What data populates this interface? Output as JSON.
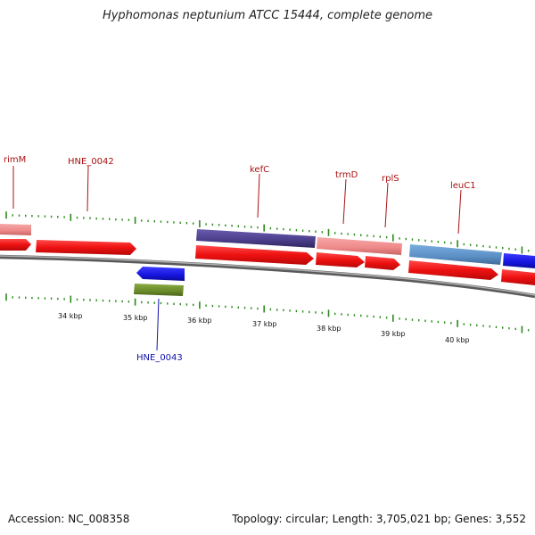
{
  "title": "Hyphomonas neptunium ATCC 15444, complete genome",
  "footer": {
    "accession": "Accession: NC_008358",
    "stats": "Topology: circular; Length: 3,705,021 bp; Genes: 3,552"
  },
  "scale_labels": [
    "34 kbp",
    "35 kbp",
    "36 kbp",
    "37 kbp",
    "38 kbp",
    "39 kbp",
    "40 kbp"
  ],
  "gene_labels": [
    {
      "text": "rimM",
      "strand": "forward"
    },
    {
      "text": "HNE_0042",
      "strand": "forward"
    },
    {
      "text": "kefC",
      "strand": "forward"
    },
    {
      "text": "trmD",
      "strand": "forward"
    },
    {
      "text": "rplS",
      "strand": "forward"
    },
    {
      "text": "leuC1",
      "strand": "forward"
    },
    {
      "text": "HNE_0043",
      "strand": "reverse"
    }
  ],
  "colors": {
    "cds": "#ee1111",
    "backbone": "#8a8a8a",
    "tick": "#2a8a1a",
    "forward_label": "#aa1111",
    "reverse_label": "#1111aa",
    "kefC_feature": "#4a3d8a",
    "trmD_feature": "#ee8888",
    "leuC1_feature": "#5b8fc4",
    "reverse_cds": "#1515dd",
    "reverse_feature": "#6a8a2a"
  }
}
